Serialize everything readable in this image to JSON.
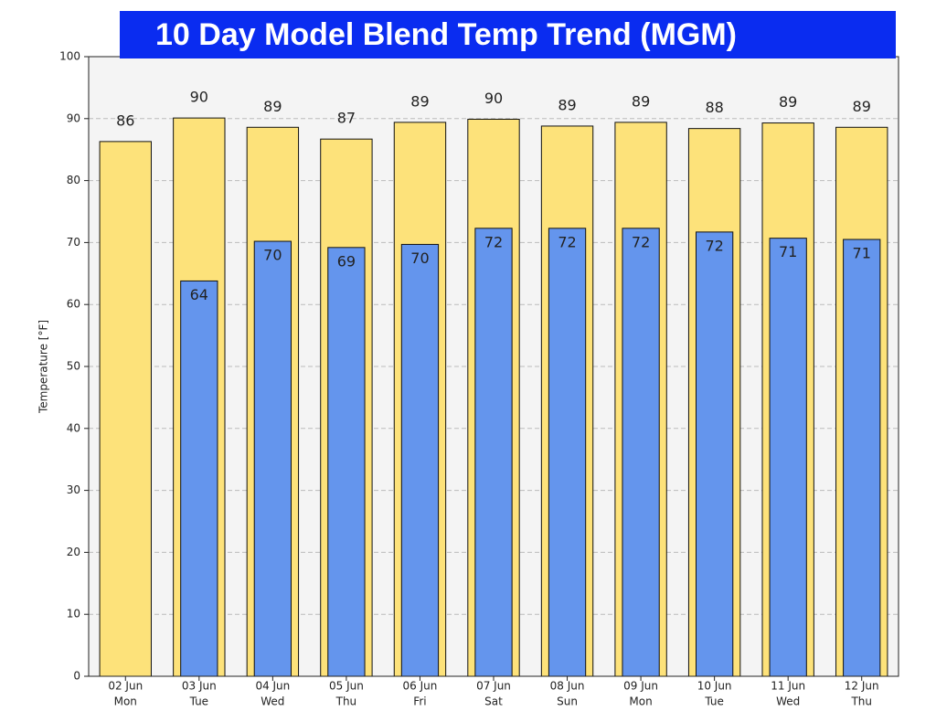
{
  "chart_data": {
    "type": "bar",
    "title": "10 Day Model Blend Temp Trend  (MGM)",
    "y_label": "Temperature [°F]",
    "categories": [
      "02 Jun",
      "03 Jun",
      "04 Jun",
      "05 Jun",
      "06 Jun",
      "07 Jun",
      "08 Jun",
      "09 Jun",
      "10 Jun",
      "11 Jun",
      "12 Jun"
    ],
    "weekdays": [
      "Mon",
      "Tue",
      "Wed",
      "Thu",
      "Fri",
      "Sat",
      "Sun",
      "Mon",
      "Tue",
      "Wed",
      "Thu"
    ],
    "series": [
      {
        "color": "#fde27a",
        "values": [
          86.3,
          90.1,
          88.6,
          86.7,
          89.4,
          89.9,
          88.8,
          89.4,
          88.4,
          89.3,
          88.6
        ],
        "value_labels": [
          "86",
          "90",
          "89",
          "87",
          "89",
          "90",
          "89",
          "89",
          "88",
          "89",
          "89"
        ]
      },
      {
        "color": "#6495ed",
        "values": [
          null,
          63.8,
          70.2,
          69.2,
          69.7,
          72.3,
          72.3,
          72.3,
          71.7,
          70.7,
          70.5
        ],
        "value_labels": [
          null,
          "64",
          "70",
          "69",
          "70",
          "72",
          "72",
          "72",
          "72",
          "71",
          "71"
        ]
      }
    ],
    "ylim": [
      0,
      100
    ],
    "yticks": [
      0,
      10,
      20,
      30,
      40,
      50,
      60,
      70,
      80,
      90,
      100
    ],
    "grid": true
  }
}
